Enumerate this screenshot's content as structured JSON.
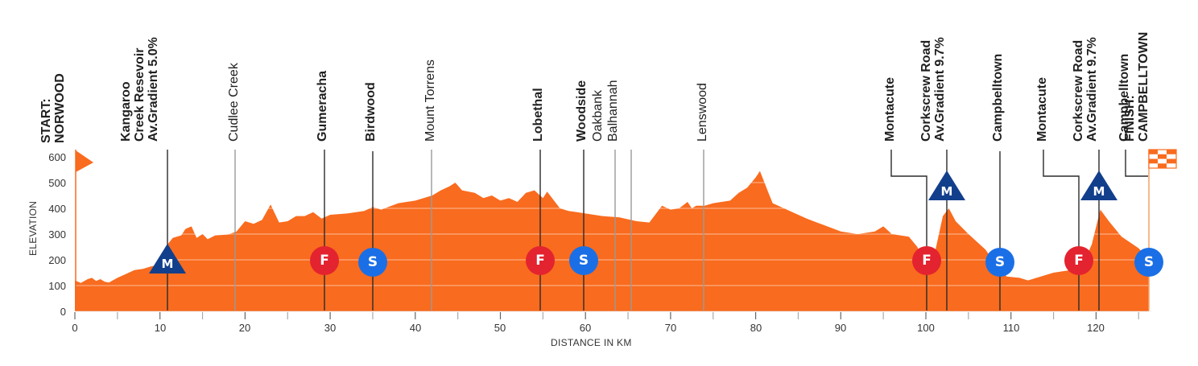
{
  "chart_data": {
    "type": "area",
    "title": "",
    "xlabel": "DISTANCE IN KM",
    "ylabel": "ELEVATION",
    "xlim": [
      0,
      126.2
    ],
    "ylim": [
      0,
      600
    ],
    "x_ticks": [
      0,
      10,
      20,
      30,
      40,
      50,
      60,
      70,
      80,
      90,
      100,
      110,
      120
    ],
    "y_ticks": [
      0,
      100,
      200,
      300,
      400,
      500,
      600
    ],
    "grid": "horizontal white lines at 100m intervals",
    "fill_color": "#f96b1e",
    "series": [
      {
        "name": "Elevation",
        "x": [
          0,
          0.7,
          1.5,
          2,
          2.5,
          3,
          3.5,
          4,
          5,
          6,
          7,
          8,
          9,
          10,
          10.9,
          11.5,
          12.5,
          13,
          13.7,
          14.3,
          15,
          15.6,
          16.5,
          18,
          19,
          20,
          21,
          22,
          23,
          24,
          25,
          26,
          27,
          28,
          29,
          30,
          32,
          34,
          35,
          36,
          38,
          40,
          42,
          43,
          44,
          44.7,
          45.5,
          47,
          48,
          49,
          50,
          51,
          52,
          53,
          54,
          55,
          55.5,
          57,
          58,
          59,
          60,
          62,
          64,
          66,
          67.5,
          69,
          70,
          71,
          72,
          72.5,
          73,
          74,
          75,
          77,
          78,
          79,
          80,
          80.5,
          81.5,
          82,
          84,
          86,
          88,
          90,
          92,
          94,
          95,
          96,
          97,
          98,
          99,
          99.8,
          100.5,
          101,
          102,
          102.7,
          103.5,
          105,
          107,
          108.5,
          109.5,
          111,
          112,
          113,
          115,
          117,
          118.5,
          119.5,
          120.5,
          121.5,
          123,
          125,
          126.2
        ],
        "values": [
          120,
          110,
          125,
          130,
          118,
          125,
          115,
          112,
          130,
          145,
          160,
          165,
          175,
          180,
          260,
          285,
          295,
          320,
          330,
          285,
          300,
          280,
          295,
          298,
          310,
          350,
          340,
          355,
          415,
          345,
          350,
          370,
          370,
          385,
          360,
          375,
          380,
          390,
          405,
          395,
          420,
          430,
          450,
          470,
          485,
          500,
          470,
          460,
          440,
          450,
          430,
          440,
          425,
          460,
          470,
          440,
          465,
          400,
          390,
          385,
          380,
          370,
          365,
          350,
          345,
          410,
          395,
          400,
          425,
          400,
          410,
          410,
          420,
          430,
          460,
          480,
          520,
          545,
          460,
          420,
          390,
          360,
          335,
          310,
          300,
          310,
          330,
          300,
          295,
          290,
          250,
          185,
          175,
          220,
          370,
          400,
          350,
          300,
          240,
          170,
          135,
          130,
          120,
          130,
          150,
          160,
          185,
          260,
          395,
          350,
          290,
          245,
          200
        ]
      }
    ],
    "annotations": [
      {
        "label": "START:\nNORWOOD",
        "km": 0,
        "bold": true,
        "type": "start"
      },
      {
        "label": "Kangaroo\nCreek Resevoir\nAv.Gradient 5.0%",
        "km": 10.9,
        "bold": true,
        "type": "climb",
        "icon": "M"
      },
      {
        "label": "Cudlee Creek",
        "km": 18.8,
        "bold": false,
        "type": "town"
      },
      {
        "label": "Gumeracha",
        "km": 29.3,
        "bold": true,
        "type": "sprint",
        "icon": "F"
      },
      {
        "label": "Birdwood",
        "km": 35.0,
        "bold": true,
        "type": "sprint",
        "icon": "S"
      },
      {
        "label": "Mount Torrens",
        "km": 41.9,
        "bold": false,
        "type": "town"
      },
      {
        "label": "Lobethal",
        "km": 54.7,
        "bold": true,
        "type": "sprint",
        "icon": "F"
      },
      {
        "label": "Woodside",
        "km": 59.8,
        "bold": true,
        "type": "sprint",
        "icon": "S"
      },
      {
        "label": "Oakbank",
        "km": 63.5,
        "bold": false,
        "type": "town"
      },
      {
        "label": "Balhannah",
        "km": 65.4,
        "bold": false,
        "type": "town"
      },
      {
        "label": "Lenswood",
        "km": 73.9,
        "bold": false,
        "type": "town"
      },
      {
        "label": "Montacute",
        "km": 100.2,
        "bold": true,
        "type": "sprint",
        "icon": "F"
      },
      {
        "label": "Corkscrew Road\nAv.Gradient 9.7%",
        "km": 102.7,
        "bold": true,
        "type": "climb",
        "icon": "M"
      },
      {
        "label": "Campbelltown",
        "km": 108.7,
        "bold": true,
        "type": "sprint",
        "icon": "S"
      },
      {
        "label": "Montacute",
        "km": 118.1,
        "bold": true,
        "type": "sprint",
        "icon": "F"
      },
      {
        "label": "Corkscrew Road\nAv.Gradient 9.7%",
        "km": 120.5,
        "bold": true,
        "type": "climb",
        "icon": "M"
      },
      {
        "label": "Campbelltown",
        "km": 126.2,
        "bold": true,
        "type": "sprint",
        "icon": "S"
      },
      {
        "label": "FINISH:\nCAMPBELLTOWN",
        "km": 126.2,
        "bold": true,
        "type": "finish"
      }
    ]
  },
  "labels": {
    "start": "START:\nNORWOOD",
    "kangaroo": "Kangaroo\nCreek Resevoir\nAv.Gradient 5.0%",
    "cudlee": "Cudlee Creek",
    "gumeracha": "Gumeracha",
    "birdwood": "Birdwood",
    "torrens": "Mount Torrens",
    "lobethal": "Lobethal",
    "woodside": "Woodside",
    "oakbank": "Oakbank\nBalhannah",
    "lenswood": "Lenswood",
    "montacute1": "Montacute",
    "corkscrew1": "Corkscrew Road\nAv.Gradient 9.7%",
    "campbelltown1": "Campbelltown",
    "montacute2": "Montacute",
    "corkscrew2": "Corkscrew Road\nAv.Gradient 9.7%",
    "campbelltown2": "Campbelltown",
    "finish": "FINISH:\nCAMPBELLTOWN"
  },
  "markers": {
    "climb_icon": "M",
    "feed_icon": "F",
    "sprint_icon": "S"
  },
  "axis": {
    "y_title": "ELEVATION",
    "x_title": "DISTANCE IN KM",
    "y_ticks": [
      "0",
      "100",
      "200",
      "300",
      "400",
      "500",
      "600"
    ],
    "x_ticks": [
      "0",
      "10",
      "20",
      "30",
      "40",
      "50",
      "60",
      "70",
      "80",
      "90",
      "100",
      "110",
      "120"
    ]
  },
  "colors": {
    "profile": "#f96b1e",
    "climb": "#123f8c",
    "feed": "#e3232f",
    "sprint": "#1a6fe6",
    "line": "#333333"
  }
}
